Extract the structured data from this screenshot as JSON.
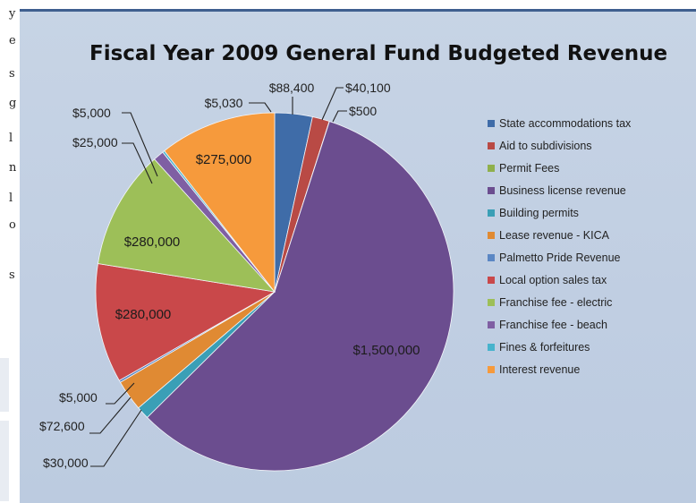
{
  "chart_data": {
    "type": "pie",
    "title": "Fiscal Year 2009 General Fund Budgeted Revenue",
    "series": [
      {
        "categories": [
          "State accommodations tax",
          "Aid to subdivisions",
          "Permit Fees",
          "Business license revenue",
          "Building permits",
          "Lease revenue - KICA",
          "Palmetto Pride Revenue",
          "Local option sales tax",
          "Franchise fee - electric",
          "Franchise fee - beach",
          "Fines & forfeitures",
          "Interest revenue"
        ],
        "values": [
          88400,
          40100,
          500,
          1500000,
          30000,
          72600,
          5000,
          280000,
          280000,
          25000,
          5000,
          275000
        ],
        "labels": [
          "$88,400",
          "$40,100",
          "$500",
          "$1,500,000",
          "$30,000",
          "$72,600",
          "$5,000",
          "$280,000",
          "$280,000",
          "$25,000",
          "$5,000",
          "$275,000"
        ]
      }
    ],
    "colors": [
      "#3f6ca8",
      "#b94a45",
      "#8fb04c",
      "#6b4d8f",
      "#3a9fb6",
      "#e08a33",
      "#5b87c4",
      "#c9484a",
      "#9dbf58",
      "#7f5fa3",
      "#47b3cc",
      "#f69a3c"
    ],
    "extra_label": "$5,030",
    "legend_position": "right"
  },
  "page_strip": [
    "y",
    "e",
    "s",
    "g",
    "l",
    "n",
    "l",
    "o",
    "s"
  ]
}
